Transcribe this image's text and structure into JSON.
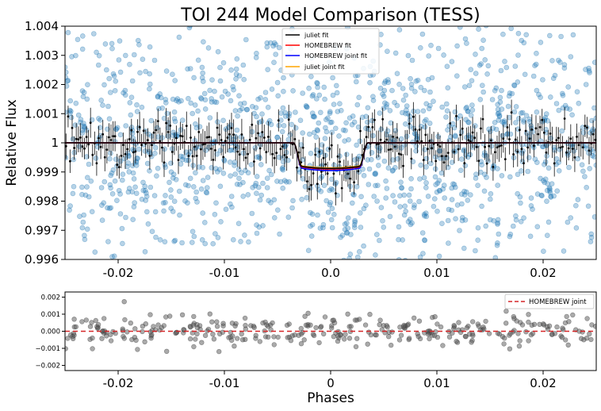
{
  "chart_data": [
    {
      "type": "scatter",
      "title": "TOI 244 Model Comparison (TESS)",
      "xlabel": "",
      "ylabel": "Relative Flux",
      "xlim": [
        -0.025,
        0.025
      ],
      "ylim": [
        0.996,
        1.004
      ],
      "x_ticks": [
        {
          "value": -0.02,
          "label": "-0.02"
        },
        {
          "value": -0.01,
          "label": "-0.01"
        },
        {
          "value": 0.0,
          "label": "0.0"
        },
        {
          "value": 0.01,
          "label": "0.01"
        },
        {
          "value": 0.02,
          "label": "0.02"
        }
      ],
      "y_ticks": [
        {
          "value": 0.996,
          "label": "0.996"
        },
        {
          "value": 0.997,
          "label": "0.997"
        },
        {
          "value": 0.998,
          "label": "0.998"
        },
        {
          "value": 0.999,
          "label": "0.999"
        },
        {
          "value": 1.0,
          "label": "1"
        },
        {
          "value": 1.001,
          "label": "1.001"
        },
        {
          "value": 1.002,
          "label": "1.002"
        },
        {
          "value": 1.003,
          "label": "1.003"
        },
        {
          "value": 1.004,
          "label": "1.004"
        }
      ],
      "grid": false,
      "legend_position": "top-center",
      "raw_data": {
        "color": "#1f77b4",
        "n_points": 1400,
        "scatter_sd": 0.0022
      },
      "binned_data": {
        "color": "#000000",
        "n_points": 260,
        "scatter_sd": 0.0004,
        "error_bar": 0.00045
      },
      "transit": {
        "baseline": 1.0,
        "depth": 0.0009,
        "half_duration": 0.0035,
        "ingress": 0.0008
      },
      "series": [
        {
          "name": "juliet fit",
          "color": "#000000",
          "depth": 0.00088
        },
        {
          "name": "HOMEBREW fit",
          "color": "#ff0000",
          "depth": 0.0009
        },
        {
          "name": "HOMEBREW joint fit",
          "color": "#0000ff",
          "depth": 0.00095
        },
        {
          "name": "juliet joint fit",
          "color": "#ffa500",
          "depth": 0.00086
        }
      ]
    },
    {
      "type": "scatter",
      "xlabel": "Phases",
      "ylabel": "",
      "xlim": [
        -0.025,
        0.025
      ],
      "ylim": [
        -0.0023,
        0.0023
      ],
      "x_ticks": [
        {
          "value": -0.02,
          "label": "-0.02"
        },
        {
          "value": -0.01,
          "label": "-0.01"
        },
        {
          "value": 0.0,
          "label": "0"
        },
        {
          "value": 0.01,
          "label": "0.01"
        },
        {
          "value": 0.02,
          "label": "0.02"
        }
      ],
      "y_ticks": [
        {
          "value": -0.002,
          "label": "−0.002"
        },
        {
          "value": -0.001,
          "label": "−0.001"
        },
        {
          "value": 0.0,
          "label": "0.000"
        },
        {
          "value": 0.001,
          "label": "0.001"
        },
        {
          "value": 0.002,
          "label": "0.002"
        }
      ],
      "grid": false,
      "legend_position": "top-right",
      "residuals": {
        "color": "#555555",
        "n_points": 330,
        "scatter_sd": 0.00045
      },
      "series": [
        {
          "name": "HOMEBREW joint",
          "color": "#d62728",
          "style": "dashed",
          "value": 0.0
        }
      ]
    }
  ]
}
